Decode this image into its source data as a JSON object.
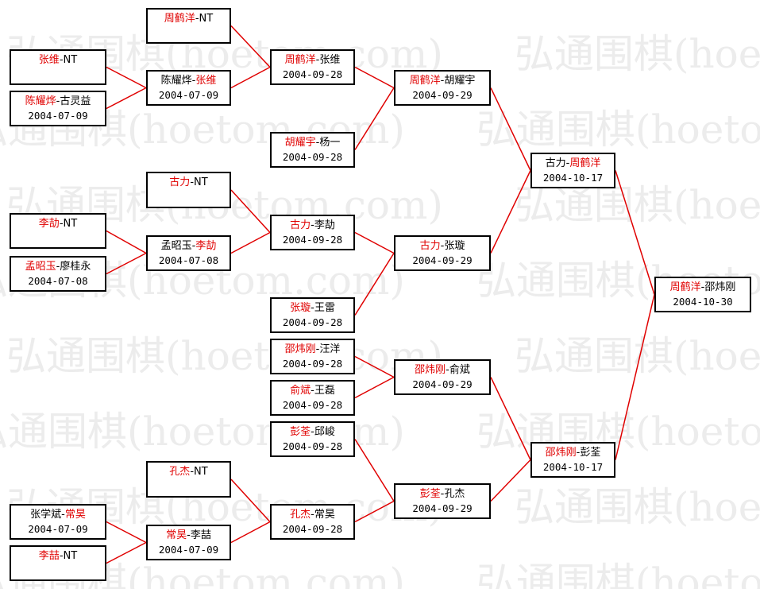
{
  "watermark": "弘通围棋(hoetom.com)",
  "separator": "-",
  "matches": [
    {
      "players": [
        {
          "name": "张维",
          "color": "#e00000"
        },
        {
          "name": "NT",
          "color": "#000000"
        }
      ]
    },
    {
      "players": [
        {
          "name": "陈耀烨",
          "color": "#e00000"
        },
        {
          "name": "古灵益",
          "color": "#000000"
        }
      ],
      "date": "2004-07-09"
    },
    {
      "players": [
        {
          "name": "李劼",
          "color": "#e00000"
        },
        {
          "name": "NT",
          "color": "#000000"
        }
      ]
    },
    {
      "players": [
        {
          "name": "孟昭玉",
          "color": "#e00000"
        },
        {
          "name": "廖桂永",
          "color": "#000000"
        }
      ],
      "date": "2004-07-08"
    },
    {
      "players": [
        {
          "name": "张学斌",
          "color": "#000000"
        },
        {
          "name": "常昊",
          "color": "#e00000"
        }
      ],
      "date": "2004-07-09"
    },
    {
      "players": [
        {
          "name": "李喆",
          "color": "#e00000"
        },
        {
          "name": "NT",
          "color": "#000000"
        }
      ]
    },
    {
      "players": [
        {
          "name": "周鹤洋",
          "color": "#e00000"
        },
        {
          "name": "NT",
          "color": "#000000"
        }
      ]
    },
    {
      "players": [
        {
          "name": "陈耀烨",
          "color": "#000000"
        },
        {
          "name": "张维",
          "color": "#e00000"
        }
      ],
      "date": "2004-07-09"
    },
    {
      "players": [
        {
          "name": "古力",
          "color": "#e00000"
        },
        {
          "name": "NT",
          "color": "#000000"
        }
      ]
    },
    {
      "players": [
        {
          "name": "孟昭玉",
          "color": "#000000"
        },
        {
          "name": "李劼",
          "color": "#e00000"
        }
      ],
      "date": "2004-07-08"
    },
    {
      "players": [
        {
          "name": "孔杰",
          "color": "#e00000"
        },
        {
          "name": "NT",
          "color": "#000000"
        }
      ]
    },
    {
      "players": [
        {
          "name": "常昊",
          "color": "#e00000"
        },
        {
          "name": "李喆",
          "color": "#000000"
        }
      ],
      "date": "2004-07-09"
    },
    {
      "players": [
        {
          "name": "周鹤洋",
          "color": "#e00000"
        },
        {
          "name": "张维",
          "color": "#000000"
        }
      ],
      "date": "2004-09-28"
    },
    {
      "players": [
        {
          "name": "胡耀宇",
          "color": "#e00000"
        },
        {
          "name": "杨一",
          "color": "#000000"
        }
      ],
      "date": "2004-09-28"
    },
    {
      "players": [
        {
          "name": "古力",
          "color": "#e00000"
        },
        {
          "name": "李劼",
          "color": "#000000"
        }
      ],
      "date": "2004-09-28"
    },
    {
      "players": [
        {
          "name": "张璇",
          "color": "#e00000"
        },
        {
          "name": "王雷",
          "color": "#000000"
        }
      ],
      "date": "2004-09-28"
    },
    {
      "players": [
        {
          "name": "邵炜刚",
          "color": "#e00000"
        },
        {
          "name": "汪洋",
          "color": "#000000"
        }
      ],
      "date": "2004-09-28"
    },
    {
      "players": [
        {
          "name": "俞斌",
          "color": "#e00000"
        },
        {
          "name": "王磊",
          "color": "#000000"
        }
      ],
      "date": "2004-09-28"
    },
    {
      "players": [
        {
          "name": "彭荃",
          "color": "#e00000"
        },
        {
          "name": "邱峻",
          "color": "#000000"
        }
      ],
      "date": "2004-09-28"
    },
    {
      "players": [
        {
          "name": "孔杰",
          "color": "#e00000"
        },
        {
          "name": "常昊",
          "color": "#000000"
        }
      ],
      "date": "2004-09-28"
    },
    {
      "players": [
        {
          "name": "周鹤洋",
          "color": "#e00000"
        },
        {
          "name": "胡耀宇",
          "color": "#000000"
        }
      ],
      "date": "2004-09-29"
    },
    {
      "players": [
        {
          "name": "古力",
          "color": "#e00000"
        },
        {
          "name": "张璇",
          "color": "#000000"
        }
      ],
      "date": "2004-09-29"
    },
    {
      "players": [
        {
          "name": "邵炜刚",
          "color": "#e00000"
        },
        {
          "name": "俞斌",
          "color": "#000000"
        }
      ],
      "date": "2004-09-29"
    },
    {
      "players": [
        {
          "name": "彭荃",
          "color": "#e00000"
        },
        {
          "name": "孔杰",
          "color": "#000000"
        }
      ],
      "date": "2004-09-29"
    },
    {
      "players": [
        {
          "name": "古力",
          "color": "#000000"
        },
        {
          "name": "周鹤洋",
          "color": "#e00000"
        }
      ],
      "date": "2004-10-17"
    },
    {
      "players": [
        {
          "name": "邵炜刚",
          "color": "#e00000"
        },
        {
          "name": "彭荃",
          "color": "#000000"
        }
      ],
      "date": "2004-10-17"
    },
    {
      "players": [
        {
          "name": "周鹤洋",
          "color": "#e00000"
        },
        {
          "name": "邵炜刚",
          "color": "#000000"
        }
      ],
      "date": "2004-10-30"
    }
  ]
}
